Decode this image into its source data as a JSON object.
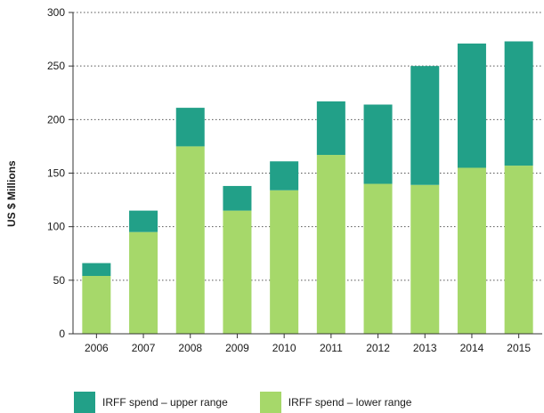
{
  "chart_data": {
    "type": "bar",
    "stacked": true,
    "categories": [
      "2006",
      "2007",
      "2008",
      "2009",
      "2010",
      "2011",
      "2012",
      "2013",
      "2014",
      "2015"
    ],
    "series": [
      {
        "name": "IRFF spend – lower range",
        "color": "#a6d86a",
        "values": [
          54,
          95,
          175,
          115,
          134,
          167,
          140,
          139,
          155,
          157
        ]
      },
      {
        "name": "IRFF spend – upper range",
        "color": "#22a088",
        "values": [
          12,
          20,
          36,
          23,
          27,
          50,
          74,
          111,
          116,
          116
        ]
      }
    ],
    "title": "",
    "xlabel": "",
    "ylabel": "US $ Millions",
    "ylim": [
      0,
      300
    ],
    "yticks": [
      0,
      50,
      100,
      150,
      200,
      250,
      300
    ],
    "grid": "horizontal-dotted",
    "legend": "bottom",
    "legend_order": [
      "IRFF spend – upper range",
      "IRFF spend – lower range"
    ]
  }
}
